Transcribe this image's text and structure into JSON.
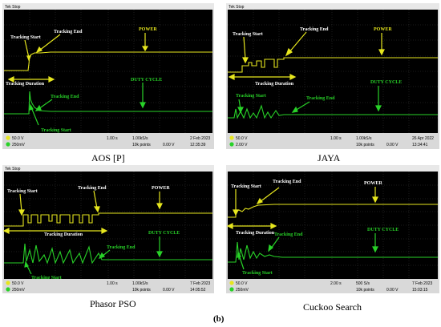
{
  "figure_label": "(b)",
  "colors": {
    "power": "#e6e61e",
    "duty": "#28d228",
    "screen": "#000000",
    "grid": "#555555",
    "status_bar": "#d9d9d9"
  },
  "panels": [
    {
      "caption": "AOS [P]",
      "header": "Tek Stop",
      "labels": {
        "power": "POWER",
        "duty": "DUTY CYCLE",
        "track_start": "Tracking Start",
        "track_end": "Tracking End",
        "duration": "Tracking Duration",
        "track_start_2": "Tracking Start",
        "track_end_2": "Tracking End"
      },
      "status": {
        "ch1": "50.0 V",
        "ch2": "250mV",
        "time": "1.00 s",
        "rate": "1.00kS/s",
        "points": "10k points",
        "trig": "0.00 V",
        "date": "2 Feb 2023",
        "clock": "12:35:39"
      }
    },
    {
      "caption": "JAYA",
      "header": "Tek Stop",
      "labels": {
        "power": "POWER",
        "duty": "DUTY CYCLE",
        "track_start": "Tracking Start",
        "track_end": "Tracking End",
        "duration": "Tracking Duration",
        "track_start_2": "Tracking Start",
        "track_end_2": "Tracking End"
      },
      "status": {
        "ch1": "50.0 V",
        "ch2": "2.00 V",
        "time": "1.00 s",
        "rate": "1.00kS/s",
        "points": "10k points",
        "trig": "0.00 V",
        "date": "26 Apr 2022",
        "clock": "13:34:41"
      }
    },
    {
      "caption": "Phasor PSO",
      "header": "Tek Stop",
      "labels": {
        "power": "POWER",
        "duty": "DUTY CYCLE",
        "track_start": "Tracking Start",
        "track_end": "Tracking End",
        "duration": "Tracking Duration",
        "track_start_2": "Tracking Start",
        "track_end_2": "Tracking End"
      },
      "status": {
        "ch1": "50.0 V",
        "ch2": "250mV",
        "time": "1.00 s",
        "rate": "1.00kS/s",
        "points": "10k points",
        "trig": "0.00 V",
        "date": "7 Feb 2023",
        "clock": "14:05:52"
      }
    },
    {
      "caption": "Cuckoo Search",
      "header": "Tek Stop",
      "labels": {
        "power": "POWER",
        "duty": "DUTY CYCLE",
        "track_start": "Tracking Start",
        "track_end": "Tracking End",
        "duration": "Tracking Duration",
        "track_start_2": "Tracking Start",
        "track_end_2": "Tracking End"
      },
      "status": {
        "ch1": "50.0 V",
        "ch2": "250mV",
        "time": "2.00 s",
        "rate": "500 S/s",
        "points": "10k points",
        "trig": "0.00 V",
        "date": "7 Feb 2023",
        "clock": "15:03:15"
      }
    }
  ]
}
